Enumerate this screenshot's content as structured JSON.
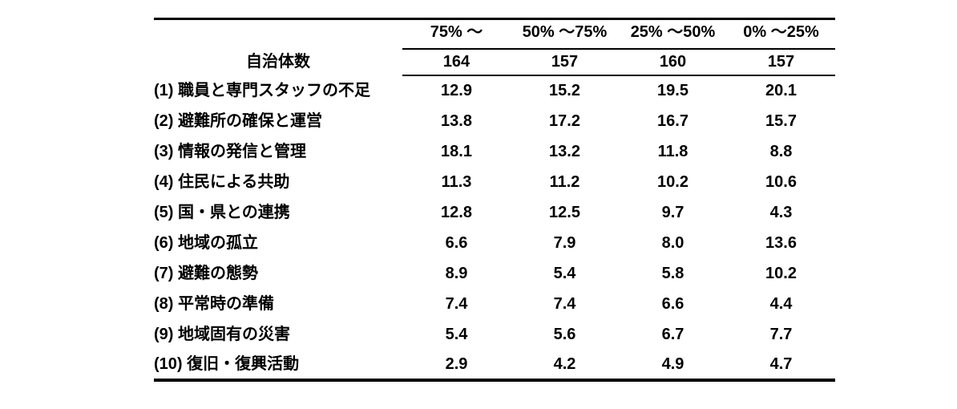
{
  "chart_data": {
    "type": "table",
    "title": "",
    "column_headers": [
      "75% ～",
      "50% ～75%",
      "25% ～50%",
      "0% ～25%"
    ],
    "count_row": {
      "label": "自治体数",
      "values": [
        "164",
        "157",
        "160",
        "157"
      ]
    },
    "data_rows": [
      {
        "label": "(1) 職員と専門スタッフの不足",
        "values": [
          "12.9",
          "15.2",
          "19.5",
          "20.1"
        ]
      },
      {
        "label": "(2) 避難所の確保と運営",
        "values": [
          "13.8",
          "17.2",
          "16.7",
          "15.7"
        ]
      },
      {
        "label": "(3) 情報の発信と管理",
        "values": [
          "18.1",
          "13.2",
          "11.8",
          "8.8"
        ]
      },
      {
        "label": "(4) 住民による共助",
        "values": [
          "11.3",
          "11.2",
          "10.2",
          "10.6"
        ]
      },
      {
        "label": "(5) 国・県との連携",
        "values": [
          "12.8",
          "12.5",
          "9.7",
          "4.3"
        ]
      },
      {
        "label": "(6) 地域の孤立",
        "values": [
          "6.6",
          "7.9",
          "8.0",
          "13.6"
        ]
      },
      {
        "label": "(7) 避難の態勢",
        "values": [
          "8.9",
          "5.4",
          "5.8",
          "10.2"
        ]
      },
      {
        "label": "(8) 平常時の準備",
        "values": [
          "7.4",
          "7.4",
          "6.6",
          "4.4"
        ]
      },
      {
        "label": "(9) 地域固有の災害",
        "values": [
          "5.4",
          "5.6",
          "6.7",
          "7.7"
        ]
      },
      {
        "label": "(10) 復旧・復興活動",
        "values": [
          "2.9",
          "4.2",
          "4.9",
          "4.7"
        ]
      }
    ],
    "layout": {
      "grid": "horizontal rules only",
      "value_unit": "percent",
      "colors": {
        "text": "#000000",
        "rule": "#000000",
        "background": "#ffffff"
      }
    }
  }
}
